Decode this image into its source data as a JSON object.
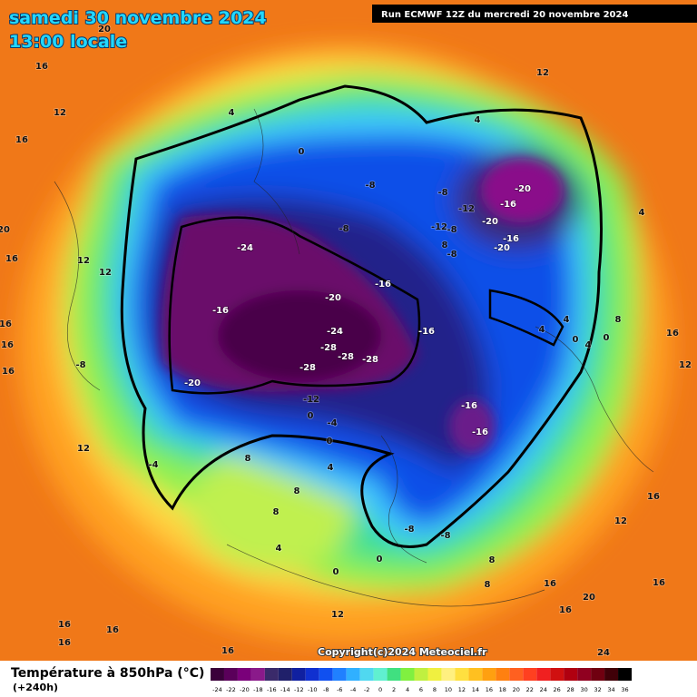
{
  "header": {
    "date": "samedi 30 novembre 2024",
    "time": "13:00 locale",
    "run": "Run ECMWF 12Z du mercredi 20 novembre 2024",
    "copyright": "Copyright(c)2024 Meteociel.fr"
  },
  "legend": {
    "title": "Température à 850hPa (°C)",
    "lead": "(+240h)",
    "ticks": [
      -24,
      -22,
      -20,
      -18,
      -16,
      -14,
      -12,
      -10,
      -8,
      -6,
      -4,
      -2,
      0,
      2,
      4,
      6,
      8,
      10,
      12,
      14,
      16,
      18,
      20,
      22,
      24,
      26,
      28,
      30,
      32,
      34,
      36
    ],
    "colors": [
      "#3a003a",
      "#5a005a",
      "#7a007a",
      "#8a1a8a",
      "#3a2a6a",
      "#20206a",
      "#1020a0",
      "#1030d0",
      "#1050f0",
      "#2080ff",
      "#30b0ff",
      "#50d8f0",
      "#60f0d0",
      "#40e080",
      "#80f040",
      "#c0f040",
      "#f0f040",
      "#fff080",
      "#ffe040",
      "#ffc020",
      "#ffa010",
      "#ff8010",
      "#ff6020",
      "#ff4020",
      "#f02020",
      "#d01010",
      "#b00010",
      "#900020",
      "#700010",
      "#400008",
      "#000000"
    ]
  },
  "contour_labels": [
    "20",
    "16",
    "12",
    "16",
    "4",
    "12",
    "4",
    "0",
    "-8",
    "-8",
    "-20",
    "-12",
    "-16",
    "-20",
    "-12",
    "-8",
    "8",
    "-8",
    "-16",
    "-20",
    "-8",
    "4",
    "-24",
    "20",
    "16",
    "12",
    "12",
    "-16",
    "-20",
    "-16",
    "4",
    "8",
    "4",
    "0",
    "4",
    "0",
    "16",
    "16",
    "16",
    "-16",
    "-24",
    "-28",
    "-28",
    "-28",
    "-28",
    "-8",
    "16",
    "12",
    "-20",
    "-12",
    "-16",
    "0",
    "-4",
    "-16",
    "0",
    "12",
    "8",
    "-4",
    "4",
    "8",
    "16",
    "8",
    "12",
    "-8",
    "-8",
    "4",
    "0",
    "8",
    "0",
    "8",
    "16",
    "16",
    "20",
    "16",
    "12",
    "16",
    "16",
    "16",
    "16",
    "24"
  ]
}
